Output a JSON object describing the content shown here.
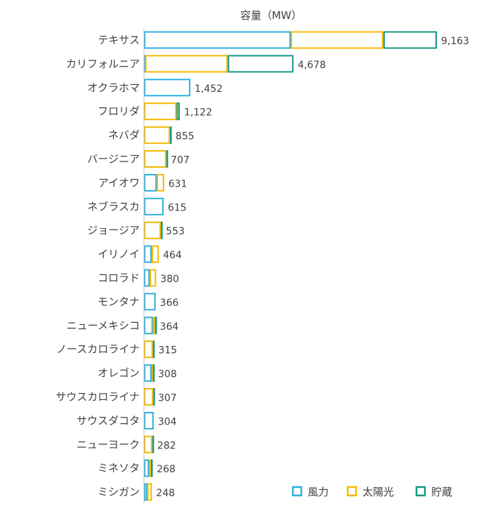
{
  "chart_data": {
    "type": "bar",
    "orientation": "horizontal",
    "stacked": true,
    "title": "容量（MW）",
    "categories": [
      "テキサス",
      "カリフォルニア",
      "オクラホマ",
      "フロリダ",
      "ネバダ",
      "バージニア",
      "アイオワ",
      "ネブラスカ",
      "ジョージア",
      "イリノイ",
      "コロラド",
      "モンタナ",
      "ニューメキシコ",
      "ノースカロライナ",
      "オレゴン",
      "サウスカロライナ",
      "サウスダコタ",
      "ニューヨーク",
      "ミネソタ",
      "ミシガン"
    ],
    "totals": [
      "9,163",
      "4,678",
      "1,452",
      "1,122",
      "855",
      "707",
      "631",
      "615",
      "553",
      "464",
      "380",
      "366",
      "364",
      "315",
      "308",
      "307",
      "304",
      "282",
      "268",
      "248"
    ],
    "series": [
      {
        "name": "風力",
        "color": "#2AB0E0",
        "values": [
          4590,
          33,
          1452,
          0,
          0,
          0,
          400,
          615,
          0,
          240,
          180,
          366,
          280,
          0,
          240,
          0,
          304,
          0,
          160,
          100
        ]
      },
      {
        "name": "太陽光",
        "color": "#F5B800",
        "values": [
          2900,
          2590,
          0,
          1020,
          815,
          700,
          231,
          0,
          530,
          224,
          200,
          0,
          70,
          280,
          40,
          290,
          0,
          260,
          60,
          148
        ]
      },
      {
        "name": "貯蔵",
        "color": "#139985",
        "values": [
          1673,
          2055,
          0,
          102,
          40,
          7,
          0,
          0,
          23,
          0,
          0,
          0,
          14,
          35,
          28,
          17,
          0,
          22,
          48,
          0
        ]
      }
    ],
    "xlim": [
      0,
      9163
    ],
    "legend_position": "bottom-right",
    "grid": false
  }
}
